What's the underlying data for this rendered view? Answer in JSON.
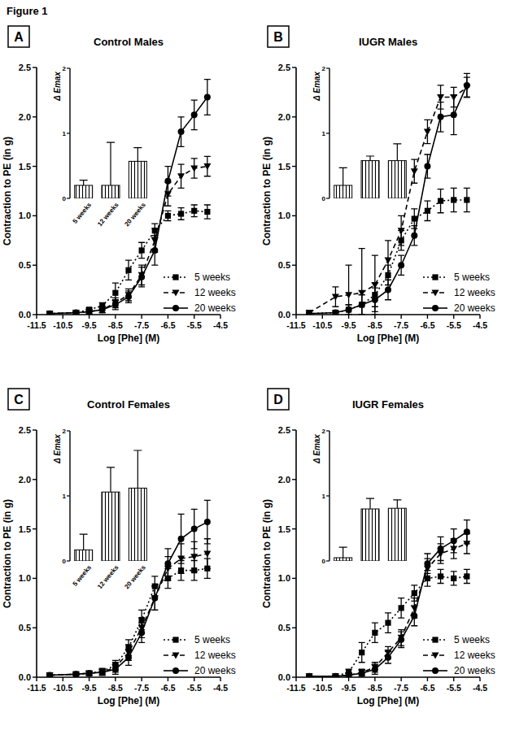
{
  "figure_label": "Figure 1",
  "chart_data": [
    {
      "type": "line",
      "annotations": [
        "A"
      ],
      "title": "Control Males",
      "x_label": "Log [Phe] (M)",
      "y_label": "Contraction to PE (in g)",
      "x": [
        -11,
        -10,
        -9.5,
        -9,
        -8.5,
        -8,
        -7.5,
        -7,
        -6.5,
        -6,
        -5.5,
        -5
      ],
      "xlim": [
        -11.5,
        -4.5
      ],
      "xticks": [
        -11.5,
        -10.5,
        -9.5,
        -8.5,
        -7.5,
        -6.5,
        -5.5,
        -4.5
      ],
      "ylim": [
        0,
        2.5
      ],
      "yticks": [
        {
          "value": 0,
          "label": "0.0"
        },
        {
          "value": 0.5,
          "label": "0.5"
        },
        {
          "value": 1,
          "label": "1.0"
        },
        {
          "value": 1.5,
          "label": "1.5"
        },
        {
          "value": 2,
          "label": "2.0"
        },
        {
          "value": 2.5,
          "label": "2.5"
        }
      ],
      "legend": "bottom-right",
      "series": [
        {
          "name": "5 weeks",
          "color": "#000000",
          "marker": "square",
          "line_style": "dotted",
          "values": [
            0.01,
            0.02,
            0.05,
            0.09,
            0.22,
            0.45,
            0.65,
            0.85,
            1.0,
            1.02,
            1.05,
            1.04
          ],
          "errors": [
            0.005,
            0.01,
            0.02,
            0.03,
            0.1,
            0.1,
            0.08,
            0.07,
            0.05,
            0.06,
            0.06,
            0.07
          ]
        },
        {
          "name": "12 weeks",
          "color": "#000000",
          "marker": "triangle-down",
          "line_style": "dashed",
          "values": [
            0.01,
            0.02,
            0.03,
            0.05,
            0.12,
            0.2,
            0.4,
            0.75,
            1.22,
            1.4,
            1.48,
            1.5
          ],
          "errors": [
            0.005,
            0.01,
            0.02,
            0.03,
            0.05,
            0.06,
            0.1,
            0.12,
            0.12,
            0.12,
            0.1,
            0.1
          ]
        },
        {
          "name": "20 weeks",
          "color": "#000000",
          "marker": "circle",
          "line_style": "solid",
          "values": [
            0.01,
            0.02,
            0.03,
            0.05,
            0.1,
            0.18,
            0.38,
            0.65,
            1.35,
            1.85,
            2.02,
            2.2
          ],
          "errors": [
            0.005,
            0.01,
            0.02,
            0.03,
            0.05,
            0.06,
            0.1,
            0.15,
            0.15,
            0.15,
            0.15,
            0.18
          ]
        }
      ]
    },
    {
      "type": "bar",
      "y_label": "Δ Emax",
      "categories": [
        "5 weeks",
        "12 weeks",
        "20 weeks"
      ],
      "values": [
        0.2,
        0.2,
        0.57
      ],
      "errors": [
        0.08,
        0.66,
        0.21
      ],
      "color": "#000000",
      "ylim": [
        0,
        2
      ],
      "yticks": [
        0,
        1,
        2
      ]
    },
    {
      "type": "line",
      "annotations": [
        "B"
      ],
      "title": "IUGR Males",
      "x_label": "Log [Phe] (M)",
      "y_label": "Contraction to PE (in g)",
      "x": [
        -11,
        -10,
        -9.5,
        -9,
        -8.5,
        -8,
        -7.5,
        -7,
        -6.5,
        -6,
        -5.5,
        -5
      ],
      "xlim": [
        -11.5,
        -4.5
      ],
      "xticks": [
        -11.5,
        -10.5,
        -9.5,
        -8.5,
        -7.5,
        -6.5,
        -5.5,
        -4.5
      ],
      "ylim": [
        0,
        2.5
      ],
      "yticks": [
        {
          "value": 0,
          "label": "0.0"
        },
        {
          "value": 0.5,
          "label": "0.5"
        },
        {
          "value": 1,
          "label": "1.0"
        },
        {
          "value": 1.5,
          "label": "1.5"
        },
        {
          "value": 2,
          "label": "2.0"
        },
        {
          "value": 2.5,
          "label": "2.5"
        }
      ],
      "legend": "bottom-right",
      "series": [
        {
          "name": "5 weeks",
          "color": "#000000",
          "marker": "square",
          "line_style": "dotted",
          "values": [
            0.01,
            0.02,
            0.05,
            0.1,
            0.2,
            0.4,
            0.75,
            0.97,
            1.05,
            1.15,
            1.16,
            1.16
          ],
          "errors": [
            0.005,
            0.02,
            0.05,
            0.1,
            0.12,
            0.1,
            0.1,
            0.1,
            0.1,
            0.12,
            0.12,
            0.12
          ]
        },
        {
          "name": "12 weeks",
          "color": "#000000",
          "marker": "triangle-down",
          "line_style": "dashed",
          "values": [
            0.02,
            0.18,
            0.2,
            0.22,
            0.3,
            0.55,
            0.85,
            1.45,
            1.85,
            2.2,
            2.2,
            2.3
          ],
          "errors": [
            0.01,
            0.1,
            0.3,
            0.45,
            0.3,
            0.2,
            0.15,
            0.12,
            0.12,
            0.12,
            0.1,
            0.1
          ]
        },
        {
          "name": "20 weeks",
          "color": "#000000",
          "marker": "circle",
          "line_style": "solid",
          "values": [
            0.01,
            0.02,
            0.05,
            0.1,
            0.15,
            0.25,
            0.5,
            0.8,
            1.5,
            2.0,
            2.02,
            2.32
          ],
          "errors": [
            0.005,
            0.02,
            0.05,
            0.1,
            0.12,
            0.1,
            0.1,
            0.1,
            0.12,
            0.15,
            0.2,
            0.12
          ]
        }
      ]
    },
    {
      "type": "bar",
      "y_label": "Δ Emax",
      "categories": [
        null,
        null,
        null
      ],
      "values": [
        0.2,
        0.58,
        0.58
      ],
      "errors": [
        0.27,
        0.07,
        0.26
      ],
      "color": "#000000",
      "ylim": [
        0,
        2
      ],
      "yticks": [
        0,
        1,
        2
      ]
    },
    {
      "type": "line",
      "annotations": [
        "C"
      ],
      "title": "Control Females",
      "x_label": "Log [Phe] (M)",
      "y_label": "Contraction to PE (in g)",
      "x": [
        -11,
        -10,
        -9.5,
        -9,
        -8.5,
        -8,
        -7.5,
        -7,
        -6.5,
        -6,
        -5.5,
        -5
      ],
      "xlim": [
        -11.5,
        -4.5
      ],
      "xticks": [
        -11.5,
        -10.5,
        -9.5,
        -8.5,
        -7.5,
        -6.5,
        -5.5,
        -4.5
      ],
      "ylim": [
        0,
        2.5
      ],
      "yticks": [
        {
          "value": 0,
          "label": "0.0"
        },
        {
          "value": 0.5,
          "label": "0.5"
        },
        {
          "value": 1,
          "label": "1.0"
        },
        {
          "value": 1.5,
          "label": "1.5"
        },
        {
          "value": 2,
          "label": "2.0"
        },
        {
          "value": 2.5,
          "label": "2.5"
        }
      ],
      "legend": "bottom-right",
      "series": [
        {
          "name": "5 weeks",
          "color": "#000000",
          "marker": "square",
          "line_style": "dotted",
          "values": [
            0.02,
            0.03,
            0.04,
            0.06,
            0.12,
            0.3,
            0.58,
            0.92,
            1.0,
            1.08,
            1.08,
            1.1
          ],
          "errors": [
            0.005,
            0.01,
            0.02,
            0.03,
            0.05,
            0.08,
            0.1,
            0.1,
            0.1,
            0.1,
            0.1,
            0.1
          ]
        },
        {
          "name": "12 weeks",
          "color": "#000000",
          "marker": "triangle-down",
          "line_style": "dashed",
          "values": [
            0.02,
            0.03,
            0.04,
            0.05,
            0.1,
            0.25,
            0.5,
            0.8,
            1.1,
            1.2,
            1.22,
            1.25
          ],
          "errors": [
            0.005,
            0.01,
            0.02,
            0.03,
            0.05,
            0.08,
            0.1,
            0.12,
            0.12,
            0.15,
            0.15,
            0.15
          ]
        },
        {
          "name": "20 weeks",
          "color": "#000000",
          "marker": "circle",
          "line_style": "solid",
          "values": [
            0.02,
            0.03,
            0.04,
            0.05,
            0.08,
            0.2,
            0.45,
            0.8,
            1.15,
            1.4,
            1.5,
            1.57
          ],
          "errors": [
            0.005,
            0.01,
            0.02,
            0.03,
            0.05,
            0.08,
            0.1,
            0.12,
            0.15,
            0.25,
            0.2,
            0.22
          ]
        }
      ]
    },
    {
      "type": "bar",
      "y_label": "Δ Emax",
      "categories": [
        "5 weeks",
        "12 weeks",
        "20 weeks"
      ],
      "values": [
        0.17,
        1.06,
        1.12
      ],
      "errors": [
        0.24,
        0.38,
        0.58
      ],
      "color": "#000000",
      "ylim": [
        0,
        2
      ],
      "yticks": [
        0,
        1,
        2
      ]
    },
    {
      "type": "line",
      "annotations": [
        "D"
      ],
      "title": "IUGR Females",
      "x_label": "Log [Phe] (M)",
      "y_label": "Contraction to PE (in g)",
      "x": [
        -11,
        -10,
        -9.5,
        -9,
        -8.5,
        -8,
        -7.5,
        -7,
        -6.5,
        -6,
        -5.5,
        -5
      ],
      "xlim": [
        -11.5,
        -4.5
      ],
      "xticks": [
        -11.5,
        -10.5,
        -9.5,
        -8.5,
        -7.5,
        -6.5,
        -5.5,
        -4.5
      ],
      "ylim": [
        0,
        2.5
      ],
      "yticks": [
        {
          "value": 0,
          "label": "0.0"
        },
        {
          "value": 0.5,
          "label": "0.5"
        },
        {
          "value": 1,
          "label": "1.0"
        },
        {
          "value": 1.5,
          "label": "1.5"
        },
        {
          "value": 2,
          "label": "2.0"
        },
        {
          "value": 2.5,
          "label": "2.5"
        }
      ],
      "legend": "bottom-right",
      "series": [
        {
          "name": "5 weeks",
          "color": "#000000",
          "marker": "square",
          "line_style": "dotted",
          "values": [
            0.01,
            0.01,
            0.05,
            0.25,
            0.45,
            0.55,
            0.7,
            0.85,
            1.0,
            1.02,
            1.0,
            1.02
          ],
          "errors": [
            0.005,
            0.01,
            0.03,
            0.1,
            0.1,
            0.1,
            0.1,
            0.08,
            0.08,
            0.07,
            0.07,
            0.07
          ]
        },
        {
          "name": "12 weeks",
          "color": "#000000",
          "marker": "triangle-down",
          "line_style": "dashed",
          "values": [
            0.01,
            0.01,
            0.02,
            0.05,
            0.1,
            0.25,
            0.4,
            0.7,
            1.1,
            1.25,
            1.3,
            1.35
          ],
          "errors": [
            0.005,
            0.01,
            0.02,
            0.03,
            0.05,
            0.06,
            0.08,
            0.1,
            0.1,
            0.1,
            0.1,
            0.1
          ]
        },
        {
          "name": "20 weeks",
          "color": "#000000",
          "marker": "circle",
          "line_style": "solid",
          "values": [
            0.01,
            0.01,
            0.02,
            0.04,
            0.08,
            0.2,
            0.38,
            0.62,
            1.15,
            1.3,
            1.38,
            1.47
          ],
          "errors": [
            0.005,
            0.01,
            0.02,
            0.03,
            0.05,
            0.06,
            0.08,
            0.1,
            0.1,
            0.12,
            0.12,
            0.12
          ]
        }
      ]
    },
    {
      "type": "bar",
      "y_label": "Δ Emax",
      "categories": [
        null,
        null,
        null
      ],
      "values": [
        0.05,
        0.8,
        0.81
      ],
      "errors": [
        0.16,
        0.16,
        0.13
      ],
      "color": "#000000",
      "ylim": [
        0,
        2
      ],
      "yticks": [
        0,
        1,
        2
      ]
    }
  ]
}
